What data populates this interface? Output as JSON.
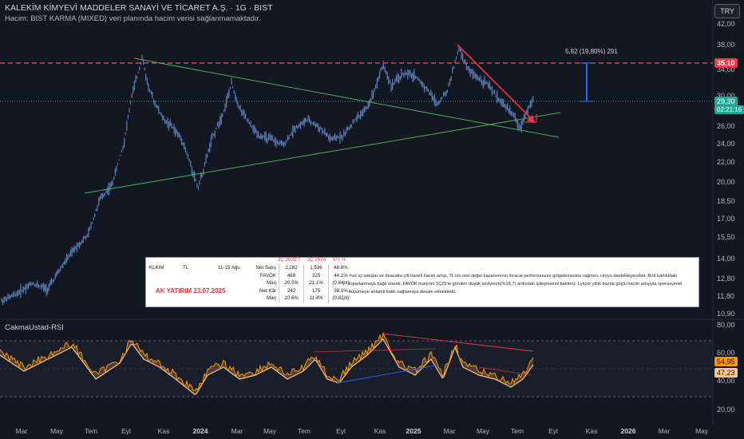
{
  "header": {
    "title": "KALEKİM KİMYEVİ MADDELER SANAYİ VE TİCARET A.Ş. · 1G · BIST",
    "volume_notice": "Hacim: BIST KARMA (MIXED) veri planında hacim verisi sağlanmamaktadır."
  },
  "currency_button": "TRY",
  "price_axis": {
    "ticks": [
      "42,00",
      "38,00",
      "34,00",
      "30,00",
      "26,00",
      "24,00",
      "22,00",
      "20,00",
      "18,50",
      "17,00",
      "15,50",
      "14,00",
      "12,80",
      "11,80",
      "10,90"
    ]
  },
  "price_tags": {
    "resistance": "35,10",
    "last_price": "29,30",
    "countdown": "02:21:16"
  },
  "measure_label": "5,82 (19,80%) 291",
  "info_table": {
    "header": [
      "2Ç 2025 T",
      "2Ç 2024",
      "Y/Y %"
    ],
    "ticker": "KLKIM",
    "currency": "TL",
    "estimate_range": "11-15 Ağu",
    "rows": [
      {
        "label": "Net Satış",
        "a": "2,282",
        "b": "1,536",
        "c": "48.6%"
      },
      {
        "label": "FAVÖK",
        "a": "468",
        "b": "325",
        "c": "44.1%"
      },
      {
        "label": "Marj",
        "a": "20.5%",
        "b": "21.1%",
        "c": "(0.64pt)"
      },
      {
        "label": "Net Kâr",
        "a": "242",
        "b": "175",
        "c": "38.1%"
      },
      {
        "label": "Marj",
        "a": "10.6%",
        "b": "11.4%",
        "c": "(0.81pt)"
      }
    ],
    "source": "AK YATIRIM 23.07.2025",
    "commentary": [
      "Yurt içi satışlar ve ihracatta çift haneli hacim artışı, TL'nin reel değer kazanımının ihracat performansını gölgelemesine rağmen, ciroyu destekleyecektir. Brüt kârlılıktaki",
      "toparlanmaya bağlı olarak, FAVÖK marjının 1Ç25'te görülen düşük seviyenin(%18,7) ardından iyileşmesini bekleriz. Lykcor yıllık bazda güçlü hacim artışıyla operasyonel",
      "büyümeye anlamlı katkı sağlamaya devam etmektedir."
    ]
  },
  "rsi": {
    "name": "CakmaUstad-RSI",
    "ticks": [
      "80,00",
      "60,00",
      "40,00",
      "20,00"
    ],
    "value_1": "54,95",
    "value_2": "47,23"
  },
  "time_axis": [
    {
      "label": "Mar",
      "bold": false
    },
    {
      "label": "May",
      "bold": false
    },
    {
      "label": "Tem",
      "bold": false
    },
    {
      "label": "Eyl",
      "bold": false
    },
    {
      "label": "Kas",
      "bold": false
    },
    {
      "label": "2024",
      "bold": true
    },
    {
      "label": "Mar",
      "bold": false
    },
    {
      "label": "May",
      "bold": false
    },
    {
      "label": "Tem",
      "bold": false
    },
    {
      "label": "Eyl",
      "bold": false
    },
    {
      "label": "Kas",
      "bold": false
    },
    {
      "label": "2025",
      "bold": true
    },
    {
      "label": "Mar",
      "bold": false
    },
    {
      "label": "May",
      "bold": false
    },
    {
      "label": "Tem",
      "bold": false
    },
    {
      "label": "Eyl",
      "bold": false
    },
    {
      "label": "Kas",
      "bold": false
    },
    {
      "label": "2026",
      "bold": true
    },
    {
      "label": "Mar",
      "bold": false
    },
    {
      "label": "May",
      "bold": false
    }
  ],
  "colors": {
    "background": "#131722",
    "candles": "#5b7fb8",
    "resistance": "#f23645",
    "trendline": "#4caf50",
    "rsi_line": "#ff9800",
    "rsi_ma": "#ffc58a",
    "rsi_fill": "#7a5a45",
    "measure": "#2962ff"
  }
}
